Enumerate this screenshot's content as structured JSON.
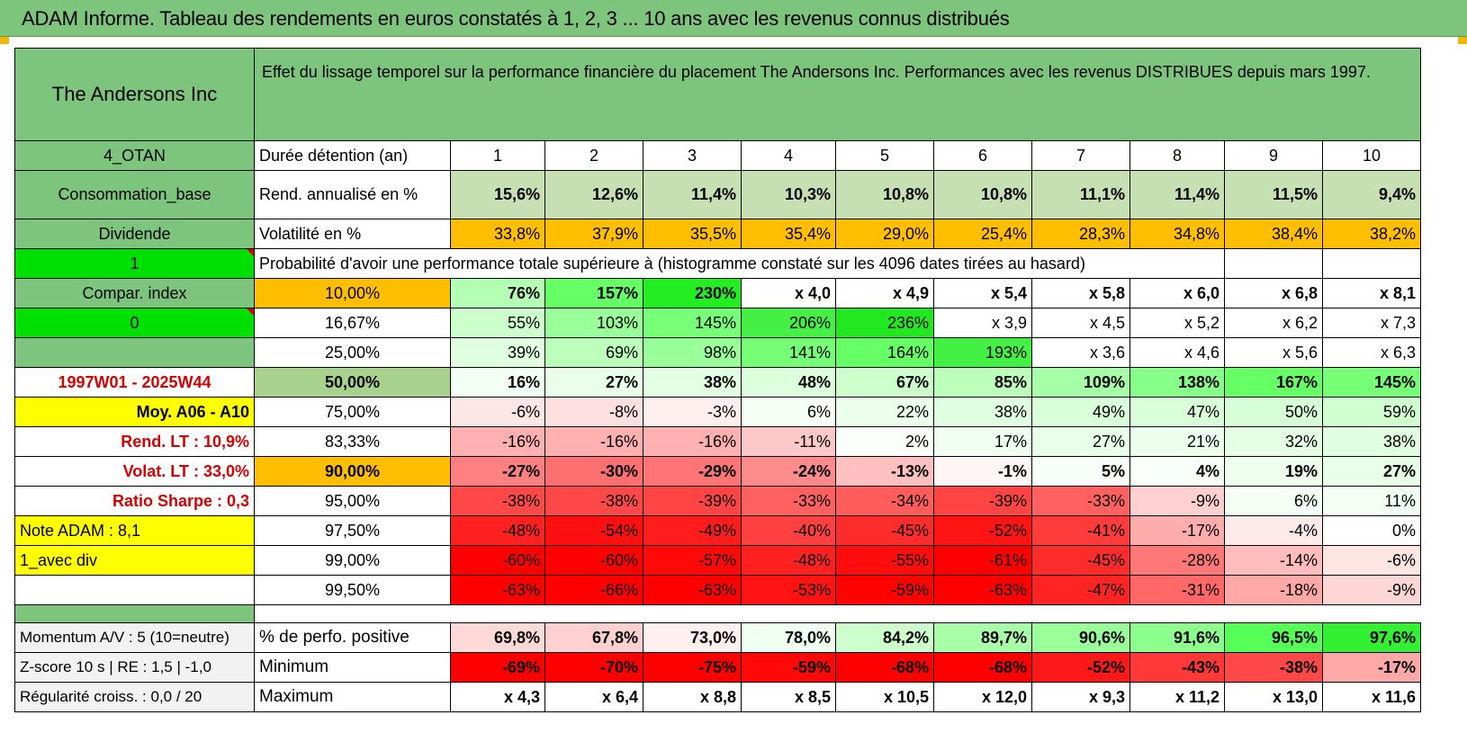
{
  "title": "ADAM Informe. Tableau des rendements en euros constatés à 1, 2, 3 ... 10 ans avec les revenus connus distribués",
  "header": {
    "fund_name": "The Andersons Inc",
    "description": "Effet du lissage temporel sur la performance financière du placement The Andersons Inc. Performances avec les revenus DISTRIBUES depuis mars 1997."
  },
  "colors": {
    "title_green": "#7dc47d",
    "side_green": "#7dc47d",
    "bright_green": "#00e000",
    "orange": "#ffbf00",
    "yellow": "#ffff00",
    "red_text": "#d20000"
  },
  "rows": [
    {
      "side": {
        "text": "4_OTAN",
        "style": "sg c"
      },
      "label": {
        "text": "Durée détention (an)",
        "style": "w l"
      },
      "cells": [
        {
          "v": "1",
          "s": "w c"
        },
        {
          "v": "2",
          "s": "w c"
        },
        {
          "v": "3",
          "s": "w c"
        },
        {
          "v": "4",
          "s": "w c"
        },
        {
          "v": "5",
          "s": "w c"
        },
        {
          "v": "6",
          "s": "w c"
        },
        {
          "v": "7",
          "s": "w c"
        },
        {
          "v": "8",
          "s": "w c"
        },
        {
          "v": "9",
          "s": "w c"
        },
        {
          "v": "10",
          "s": "w c"
        }
      ]
    },
    {
      "side": {
        "text": "Consommation_base",
        "style": "sg c"
      },
      "label": {
        "text": "Rend. annualisé en %",
        "style": "w l"
      },
      "cells": [
        {
          "v": "15,6%",
          "bg": "#c6e0b4",
          "s": "r b"
        },
        {
          "v": "12,6%",
          "bg": "#c6e0b4",
          "s": "r b"
        },
        {
          "v": "11,4%",
          "bg": "#c6e0b4",
          "s": "r b"
        },
        {
          "v": "10,3%",
          "bg": "#c6e0b4",
          "s": "r b"
        },
        {
          "v": "10,8%",
          "bg": "#c6e0b4",
          "s": "r b"
        },
        {
          "v": "10,8%",
          "bg": "#c6e0b4",
          "s": "r b"
        },
        {
          "v": "11,1%",
          "bg": "#c6e0b4",
          "s": "r b"
        },
        {
          "v": "11,4%",
          "bg": "#c6e0b4",
          "s": "r b"
        },
        {
          "v": "11,5%",
          "bg": "#c6e0b4",
          "s": "r b"
        },
        {
          "v": "9,4%",
          "bg": "#c6e0b4",
          "s": "r b"
        }
      ]
    },
    {
      "side": {
        "text": "Dividende",
        "style": "sg c"
      },
      "label": {
        "text": "Volatilité en %",
        "style": "w l"
      },
      "cells": [
        {
          "v": "33,8%",
          "bg": "#ffbf00",
          "s": "r"
        },
        {
          "v": "37,9%",
          "bg": "#ffbf00",
          "s": "r"
        },
        {
          "v": "35,5%",
          "bg": "#ffbf00",
          "s": "r"
        },
        {
          "v": "35,4%",
          "bg": "#ffbf00",
          "s": "r"
        },
        {
          "v": "29,0%",
          "bg": "#ffbf00",
          "s": "r"
        },
        {
          "v": "25,4%",
          "bg": "#ffbf00",
          "s": "r"
        },
        {
          "v": "28,3%",
          "bg": "#ffbf00",
          "s": "r"
        },
        {
          "v": "34,8%",
          "bg": "#ffbf00",
          "s": "r"
        },
        {
          "v": "38,4%",
          "bg": "#ffbf00",
          "s": "r"
        },
        {
          "v": "38,2%",
          "bg": "#ffbf00",
          "s": "r"
        }
      ]
    },
    {
      "side": {
        "text": "1",
        "style": "bg c"
      },
      "span_label": "Probabilité d'avoir une performance totale supérieure à (histogramme constaté sur les 4096 dates tirées au hasard)",
      "cells": [
        {
          "v": "",
          "s": "w"
        },
        {
          "v": "",
          "s": "w"
        }
      ]
    },
    {
      "side": {
        "text": "Compar. index",
        "style": "sg c"
      },
      "label": {
        "text": "10,00%",
        "style": "o c"
      },
      "cells": [
        {
          "v": "76%",
          "bg": "#b3ffb3",
          "s": "r b"
        },
        {
          "v": "157%",
          "bg": "#66ff66",
          "s": "r b"
        },
        {
          "v": "230%",
          "bg": "#22ee22",
          "s": "r b"
        },
        {
          "v": "x 4,0",
          "bg": "#ffffff",
          "s": "r b"
        },
        {
          "v": "x 4,9",
          "bg": "#ffffff",
          "s": "r b"
        },
        {
          "v": "x 5,4",
          "bg": "#ffffff",
          "s": "r b"
        },
        {
          "v": "x 5,8",
          "bg": "#ffffff",
          "s": "r b"
        },
        {
          "v": "x 6,0",
          "bg": "#ffffff",
          "s": "r b"
        },
        {
          "v": "x 6,8",
          "bg": "#ffffff",
          "s": "r b"
        },
        {
          "v": "x 8,1",
          "bg": "#ffffff",
          "s": "r b"
        }
      ]
    },
    {
      "side": {
        "text": "0",
        "style": "bg c"
      },
      "label": {
        "text": "16,67%",
        "style": "w c"
      },
      "cells": [
        {
          "v": "55%",
          "bg": "#ccffcc",
          "s": "r"
        },
        {
          "v": "103%",
          "bg": "#99ff99",
          "s": "r"
        },
        {
          "v": "145%",
          "bg": "#77ff77",
          "s": "r"
        },
        {
          "v": "206%",
          "bg": "#44f044",
          "s": "r"
        },
        {
          "v": "236%",
          "bg": "#22e822",
          "s": "r"
        },
        {
          "v": "x 3,9",
          "bg": "#ffffff",
          "s": "r"
        },
        {
          "v": "x 4,5",
          "bg": "#ffffff",
          "s": "r"
        },
        {
          "v": "x 5,2",
          "bg": "#ffffff",
          "s": "r"
        },
        {
          "v": "x 6,2",
          "bg": "#ffffff",
          "s": "r"
        },
        {
          "v": "x 7,3",
          "bg": "#ffffff",
          "s": "r"
        }
      ]
    },
    {
      "side": {
        "text": "",
        "style": "sg c"
      },
      "label": {
        "text": "25,00%",
        "style": "w c"
      },
      "cells": [
        {
          "v": "39%",
          "bg": "#dfffdf",
          "s": "r"
        },
        {
          "v": "69%",
          "bg": "#bbffbb",
          "s": "r"
        },
        {
          "v": "98%",
          "bg": "#99ff99",
          "s": "r"
        },
        {
          "v": "141%",
          "bg": "#77ff77",
          "s": "r"
        },
        {
          "v": "164%",
          "bg": "#66ff66",
          "s": "r"
        },
        {
          "v": "193%",
          "bg": "#44f044",
          "s": "r"
        },
        {
          "v": "x 3,6",
          "bg": "#ffffff",
          "s": "r"
        },
        {
          "v": "x 4,6",
          "bg": "#ffffff",
          "s": "r"
        },
        {
          "v": "x 5,6",
          "bg": "#ffffff",
          "s": "r"
        },
        {
          "v": "x 6,3",
          "bg": "#ffffff",
          "s": "r"
        }
      ]
    },
    {
      "side": {
        "text": "1997W01 - 2025W44",
        "style": "w c red b"
      },
      "label": {
        "text": "50,00%",
        "style": "lg c big b"
      },
      "cells": [
        {
          "v": "16%",
          "bg": "#f2fff2",
          "s": "r big b"
        },
        {
          "v": "27%",
          "bg": "#eaffea",
          "s": "r big b"
        },
        {
          "v": "38%",
          "bg": "#e2ffe2",
          "s": "r big b"
        },
        {
          "v": "48%",
          "bg": "#dcffdc",
          "s": "r big b"
        },
        {
          "v": "67%",
          "bg": "#ccffcc",
          "s": "r big b"
        },
        {
          "v": "85%",
          "bg": "#bbffbb",
          "s": "r big b"
        },
        {
          "v": "109%",
          "bg": "#a6ffa6",
          "s": "r big b"
        },
        {
          "v": "138%",
          "bg": "#88ff88",
          "s": "r big b"
        },
        {
          "v": "167%",
          "bg": "#66ff66",
          "s": "r big b"
        },
        {
          "v": "145%",
          "bg": "#77ff77",
          "s": "r big b"
        }
      ]
    },
    {
      "side": {
        "text": "Moy. A06 - A10",
        "style": "y r b"
      },
      "label": {
        "text": "75,00%",
        "style": "w c"
      },
      "cells": [
        {
          "v": "-6%",
          "bg": "#ffe6e6",
          "s": "r"
        },
        {
          "v": "-8%",
          "bg": "#ffe0e0",
          "s": "r"
        },
        {
          "v": "-3%",
          "bg": "#ffeeee",
          "s": "r"
        },
        {
          "v": "6%",
          "bg": "#f6fff6",
          "s": "r"
        },
        {
          "v": "22%",
          "bg": "#ecffec",
          "s": "r"
        },
        {
          "v": "38%",
          "bg": "#e0ffe0",
          "s": "r"
        },
        {
          "v": "49%",
          "bg": "#d8ffd8",
          "s": "r"
        },
        {
          "v": "47%",
          "bg": "#d9ffd9",
          "s": "r"
        },
        {
          "v": "50%",
          "bg": "#d6ffd6",
          "s": "r"
        },
        {
          "v": "59%",
          "bg": "#d0ffd0",
          "s": "r"
        }
      ]
    },
    {
      "side": {
        "text": "Rend. LT :    10,9%",
        "style": "w r red b"
      },
      "label": {
        "text": "83,33%",
        "style": "w c"
      },
      "cells": [
        {
          "v": "-16%",
          "bg": "#ffb0b0",
          "s": "r"
        },
        {
          "v": "-16%",
          "bg": "#ffb0b0",
          "s": "r"
        },
        {
          "v": "-16%",
          "bg": "#ffb0b0",
          "s": "r"
        },
        {
          "v": "-11%",
          "bg": "#ffc8c8",
          "s": "r"
        },
        {
          "v": "2%",
          "bg": "#fbfffb",
          "s": "r"
        },
        {
          "v": "17%",
          "bg": "#f0fff0",
          "s": "r"
        },
        {
          "v": "27%",
          "bg": "#e8ffe8",
          "s": "r"
        },
        {
          "v": "21%",
          "bg": "#ecffec",
          "s": "r"
        },
        {
          "v": "32%",
          "bg": "#e4ffe4",
          "s": "r"
        },
        {
          "v": "38%",
          "bg": "#e0ffe0",
          "s": "r"
        }
      ]
    },
    {
      "side": {
        "text": "Volat. LT :    33,0%",
        "style": "w r red b"
      },
      "label": {
        "text": "90,00%",
        "style": "o c b"
      },
      "cells": [
        {
          "v": "-27%",
          "bg": "#ff8080",
          "s": "r b"
        },
        {
          "v": "-30%",
          "bg": "#ff7070",
          "s": "r b"
        },
        {
          "v": "-29%",
          "bg": "#ff7474",
          "s": "r b"
        },
        {
          "v": "-24%",
          "bg": "#ff8c8c",
          "s": "r b"
        },
        {
          "v": "-13%",
          "bg": "#ffc0c0",
          "s": "r b"
        },
        {
          "v": "-1%",
          "bg": "#fff6f6",
          "s": "r b"
        },
        {
          "v": "5%",
          "bg": "#f8fff8",
          "s": "r b"
        },
        {
          "v": "4%",
          "bg": "#f9fff9",
          "s": "r b"
        },
        {
          "v": "19%",
          "bg": "#eeffee",
          "s": "r b"
        },
        {
          "v": "27%",
          "bg": "#e8ffe8",
          "s": "r b"
        }
      ]
    },
    {
      "side": {
        "text": "Ratio Sharpe :     0,3",
        "style": "w r red b"
      },
      "label": {
        "text": "95,00%",
        "style": "w c"
      },
      "cells": [
        {
          "v": "-38%",
          "bg": "#ff4848",
          "s": "r"
        },
        {
          "v": "-38%",
          "bg": "#ff4848",
          "s": "r"
        },
        {
          "v": "-39%",
          "bg": "#ff4444",
          "s": "r"
        },
        {
          "v": "-33%",
          "bg": "#ff6060",
          "s": "r"
        },
        {
          "v": "-34%",
          "bg": "#ff5c5c",
          "s": "r"
        },
        {
          "v": "-39%",
          "bg": "#ff4444",
          "s": "r"
        },
        {
          "v": "-33%",
          "bg": "#ff6060",
          "s": "r"
        },
        {
          "v": "-9%",
          "bg": "#ffd0d0",
          "s": "r"
        },
        {
          "v": "6%",
          "bg": "#f6fff6",
          "s": "r"
        },
        {
          "v": "11%",
          "bg": "#f3fff3",
          "s": "r"
        }
      ]
    },
    {
      "side": {
        "text": "Note ADAM : 8,1",
        "style": "y l big"
      },
      "label": {
        "text": "97,50%",
        "style": "w c"
      },
      "cells": [
        {
          "v": "-48%",
          "bg": "#ff2020",
          "s": "r"
        },
        {
          "v": "-54%",
          "bg": "#ff1010",
          "s": "r"
        },
        {
          "v": "-49%",
          "bg": "#ff1c1c",
          "s": "r"
        },
        {
          "v": "-40%",
          "bg": "#ff4040",
          "s": "r"
        },
        {
          "v": "-45%",
          "bg": "#ff2c2c",
          "s": "r"
        },
        {
          "v": "-52%",
          "bg": "#ff1414",
          "s": "r"
        },
        {
          "v": "-41%",
          "bg": "#ff3c3c",
          "s": "r"
        },
        {
          "v": "-17%",
          "bg": "#ffacac",
          "s": "r"
        },
        {
          "v": "-4%",
          "bg": "#ffeaea",
          "s": "r"
        },
        {
          "v": "0%",
          "bg": "#ffffff",
          "s": "r"
        }
      ]
    },
    {
      "side": {
        "text": "1_avec div",
        "style": "y l big"
      },
      "label": {
        "text": "99,00%",
        "style": "w c"
      },
      "cells": [
        {
          "v": "-60%",
          "bg": "#ff0000",
          "s": "r"
        },
        {
          "v": "-60%",
          "bg": "#ff0000",
          "s": "r"
        },
        {
          "v": "-57%",
          "bg": "#ff0808",
          "s": "r"
        },
        {
          "v": "-48%",
          "bg": "#ff2020",
          "s": "r"
        },
        {
          "v": "-55%",
          "bg": "#ff0c0c",
          "s": "r"
        },
        {
          "v": "-61%",
          "bg": "#ff0000",
          "s": "r"
        },
        {
          "v": "-45%",
          "bg": "#ff2c2c",
          "s": "r"
        },
        {
          "v": "-28%",
          "bg": "#ff7878",
          "s": "r"
        },
        {
          "v": "-14%",
          "bg": "#ffbcbc",
          "s": "r"
        },
        {
          "v": "-6%",
          "bg": "#ffe4e4",
          "s": "r"
        }
      ]
    },
    {
      "side": {
        "text": "",
        "style": "w c"
      },
      "label": {
        "text": "99,50%",
        "style": "w c"
      },
      "cells": [
        {
          "v": "-63%",
          "bg": "#ff0000",
          "s": "r"
        },
        {
          "v": "-66%",
          "bg": "#ff0000",
          "s": "r"
        },
        {
          "v": "-63%",
          "bg": "#ff0000",
          "s": "r"
        },
        {
          "v": "-53%",
          "bg": "#ff1212",
          "s": "r"
        },
        {
          "v": "-59%",
          "bg": "#ff0202",
          "s": "r"
        },
        {
          "v": "-63%",
          "bg": "#ff0000",
          "s": "r"
        },
        {
          "v": "-47%",
          "bg": "#ff2424",
          "s": "r"
        },
        {
          "v": "-31%",
          "bg": "#ff6868",
          "s": "r"
        },
        {
          "v": "-18%",
          "bg": "#ffa8a8",
          "s": "r"
        },
        {
          "v": "-9%",
          "bg": "#ffd6d6",
          "s": "r"
        }
      ]
    }
  ],
  "footer_rows": [
    {
      "side": "Momentum A/V : 5 (10=neutre)",
      "label": "% de perfo. positive",
      "cells": [
        {
          "v": "69,8%",
          "bg": "#ffd8d8",
          "s": "r b"
        },
        {
          "v": "67,8%",
          "bg": "#ffd0d0",
          "s": "r b"
        },
        {
          "v": "73,0%",
          "bg": "#fff0f0",
          "s": "r b"
        },
        {
          "v": "78,0%",
          "bg": "#f0fff0",
          "s": "r b"
        },
        {
          "v": "84,2%",
          "bg": "#ccffcc",
          "s": "r b"
        },
        {
          "v": "89,7%",
          "bg": "#a8ffa8",
          "s": "r b"
        },
        {
          "v": "90,6%",
          "bg": "#99ff99",
          "s": "r b"
        },
        {
          "v": "91,6%",
          "bg": "#8cff8c",
          "s": "r b"
        },
        {
          "v": "96,5%",
          "bg": "#55ff55",
          "s": "r b"
        },
        {
          "v": "97,6%",
          "bg": "#33f033",
          "s": "r b"
        }
      ]
    },
    {
      "side": "Z-score 10 s | RE : 1,5 | -1,0",
      "label": "Minimum",
      "cells": [
        {
          "v": "-69%",
          "bg": "#ff0000",
          "s": "r b"
        },
        {
          "v": "-70%",
          "bg": "#ff0000",
          "s": "r b"
        },
        {
          "v": "-75%",
          "bg": "#ff0000",
          "s": "r b"
        },
        {
          "v": "-59%",
          "bg": "#ff0808",
          "s": "r b"
        },
        {
          "v": "-68%",
          "bg": "#ff0000",
          "s": "r b"
        },
        {
          "v": "-68%",
          "bg": "#ff0000",
          "s": "r b"
        },
        {
          "v": "-52%",
          "bg": "#ff1818",
          "s": "r b"
        },
        {
          "v": "-43%",
          "bg": "#ff3838",
          "s": "r b"
        },
        {
          "v": "-38%",
          "bg": "#ff4848",
          "s": "r b"
        },
        {
          "v": "-17%",
          "bg": "#ffa8a8",
          "s": "r b"
        }
      ]
    },
    {
      "side": "Régularité croiss. : 0,0 / 20",
      "label": "Maximum",
      "cells": [
        {
          "v": "x 4,3",
          "bg": "#ffffff",
          "s": "r b"
        },
        {
          "v": "x 6,4",
          "bg": "#ffffff",
          "s": "r b"
        },
        {
          "v": "x 8,8",
          "bg": "#ffffff",
          "s": "r b"
        },
        {
          "v": "x 8,5",
          "bg": "#ffffff",
          "s": "r b"
        },
        {
          "v": "x 10,5",
          "bg": "#ffffff",
          "s": "r b"
        },
        {
          "v": "x 12,0",
          "bg": "#ffffff",
          "s": "r b"
        },
        {
          "v": "x 9,3",
          "bg": "#ffffff",
          "s": "r b"
        },
        {
          "v": "x 11,2",
          "bg": "#ffffff",
          "s": "r b"
        },
        {
          "v": "x 13,0",
          "bg": "#ffffff",
          "s": "r b"
        },
        {
          "v": "x 11,6",
          "bg": "#ffffff",
          "s": "r b"
        }
      ]
    }
  ]
}
